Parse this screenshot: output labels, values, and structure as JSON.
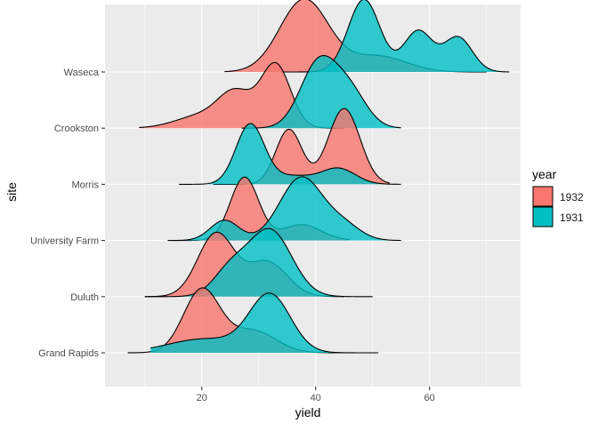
{
  "chart_data": {
    "type": "ridgeline",
    "title": "",
    "xlabel": "yield",
    "ylabel": "site",
    "xlim": [
      3,
      76
    ],
    "x_ticks": [
      20,
      40,
      60
    ],
    "categories": [
      "Grand Rapids",
      "Duluth",
      "University Farm",
      "Morris",
      "Crookston",
      "Waseca"
    ],
    "legend": {
      "title": "year",
      "position": "right",
      "entries": [
        {
          "label": "1932",
          "color": "#F8766D"
        },
        {
          "label": "1931",
          "color": "#00BFC4"
        }
      ]
    },
    "grid": true,
    "series": [
      {
        "name": "1932",
        "color": "#F8766D",
        "fill_opacity": 0.8,
        "densities": {
          "Grand Rapids": {
            "peaks": [
              [
                20,
                1.0,
                3.2
              ],
              [
                29,
                0.35,
                4.0
              ]
            ],
            "range": [
              7,
              47
            ]
          },
          "Duluth": {
            "peaks": [
              [
                22.5,
                1.0,
                3.2
              ],
              [
                31.5,
                0.55,
                3.5
              ]
            ],
            "range": [
              10,
              45
            ]
          },
          "University Farm": {
            "peaks": [
              [
                27.5,
                1.0,
                2.5
              ],
              [
                37.5,
                0.25,
                3.5
              ]
            ],
            "range": [
              15,
              46
            ]
          },
          "Morris": {
            "peaks": [
              [
                35.3,
                0.87,
                2.3
              ],
              [
                45,
                1.2,
                2.8
              ]
            ],
            "range": [
              22,
              53
            ]
          },
          "Crookston": {
            "peaks": [
              [
                20,
                0.2,
                4.5
              ],
              [
                26,
                0.52,
                3.0
              ],
              [
                33,
                1.0,
                2.6
              ]
            ],
            "range": [
              9,
              45
            ]
          },
          "Waseca": {
            "peaks": [
              [
                38,
                1.15,
                4.3
              ],
              [
                51,
                0.25,
                5.0
              ]
            ],
            "range": [
              24,
              70
            ]
          }
        }
      },
      {
        "name": "1931",
        "color": "#00BFC4",
        "fill_opacity": 0.8,
        "densities": {
          "Grand Rapids": {
            "peaks": [
              [
                20.5,
                0.22,
                6.5
              ],
              [
                32,
                0.9,
                3.6
              ]
            ],
            "range": [
              11,
              51
            ]
          },
          "Duluth": {
            "peaks": [
              [
                25,
                0.4,
                3.0
              ],
              [
                32,
                1.05,
                3.8
              ]
            ],
            "range": [
              10,
              50
            ]
          },
          "University Farm": {
            "peaks": [
              [
                24,
                0.32,
                2.5
              ],
              [
                37.5,
                1.0,
                3.8
              ],
              [
                45,
                0.22,
                3.0
              ]
            ],
            "range": [
              14,
              55
            ]
          },
          "Morris": {
            "peaks": [
              [
                28.5,
                0.95,
                2.5
              ],
              [
                36,
                0.13,
                3.5
              ],
              [
                44,
                0.25,
                3.0
              ]
            ],
            "range": [
              16,
              55
            ]
          },
          "Crookston": {
            "peaks": [
              [
                40.5,
                1.02,
                3.2
              ],
              [
                46,
                0.55,
                3.0
              ]
            ],
            "range": [
              27,
              55
            ]
          },
          "Waseca": {
            "peaks": [
              [
                48.5,
                1.15,
                2.8
              ],
              [
                58,
                0.65,
                2.5
              ],
              [
                65,
                0.55,
                2.5
              ]
            ],
            "range": [
              34,
              74
            ]
          }
        }
      }
    ]
  }
}
